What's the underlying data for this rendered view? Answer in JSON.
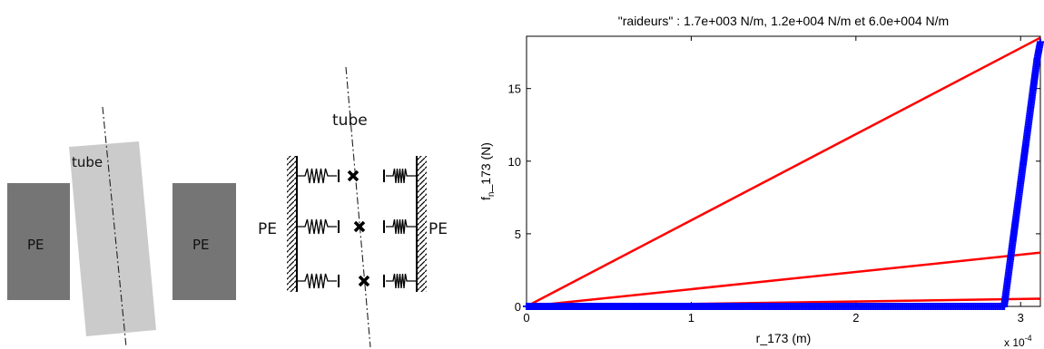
{
  "left_diagram": {
    "tube_label": "tube",
    "plate_left_label": "PE",
    "plate_right_label": "PE",
    "colors": {
      "plate": "#757575",
      "tube": "#cbcbcb",
      "text": "#111111"
    }
  },
  "spring_diagram": {
    "tube_label": "tube",
    "wall_left_label": "PE",
    "wall_right_label": "PE"
  },
  "chart_data": {
    "type": "line",
    "title": "\"raideurs\" : 1.7e+003 N/m, 1.2e+004 N/m et 6.0e+004 N/m",
    "xlabel": "r_173 (m)",
    "ylabel_main": "f",
    "ylabel_sub": "n",
    "ylabel_rest": "_173 (N)",
    "x_multiplier": "x 10",
    "x_multiplier_exp": "-4",
    "x_scale": 0.0001,
    "xlim": [
      0,
      3.12
    ],
    "ylim": [
      0,
      18.6
    ],
    "xticks": [
      0,
      1,
      2,
      3
    ],
    "yticks": [
      0,
      5,
      10,
      15
    ],
    "grid": false,
    "series": [
      {
        "color": "#ff0000",
        "style": "line",
        "x": [
          0,
          3.12
        ],
        "y": [
          0,
          18.5
        ]
      },
      {
        "color": "#ff0000",
        "style": "line",
        "x": [
          0,
          3.12
        ],
        "y": [
          0,
          3.7
        ]
      },
      {
        "color": "#ff0000",
        "style": "line",
        "x": [
          0,
          3.12
        ],
        "y": [
          0,
          0.53
        ]
      },
      {
        "color": "#0000ff",
        "style": "markers",
        "marker": "+",
        "x": [
          0,
          2.9,
          3.1,
          3.12
        ],
        "y": [
          0,
          0,
          17.0,
          18.2
        ]
      }
    ]
  }
}
